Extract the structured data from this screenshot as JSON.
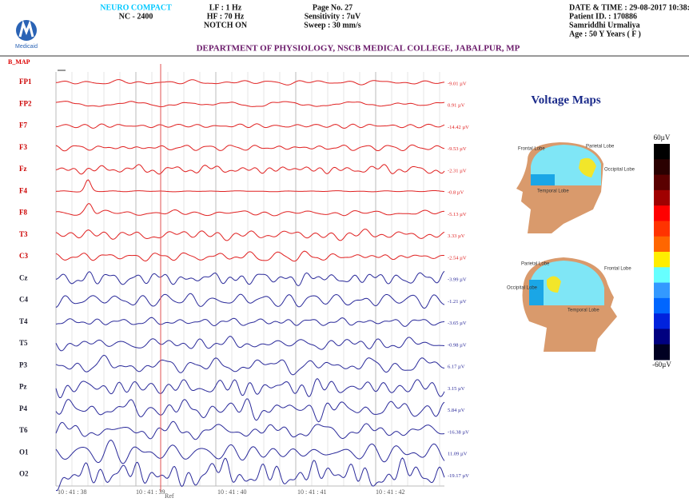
{
  "header": {
    "logo": "Medicaid",
    "device": "NEURO COMPACT",
    "model": "NC - 2400",
    "lf": "LF : 1 Hz",
    "hf": "HF : 70 Hz",
    "notch": "NOTCH ON",
    "page": "Page No. 27",
    "sensitivity": "Sensitivity : 7uV",
    "sweep": "Sweep : 30 mm/s",
    "datetime": "DATE & TIME : 29-08-2017 10:38:",
    "patient_id": "Patient ID. : 170886",
    "patient_name": "Samriddhi Urmaliya",
    "age": "Age : 50 Y Years  ( F )",
    "department": "DEPARTMENT OF PHYSIOLOGY, NSCB MEDICAL COLLEGE, JABALPUR, MP"
  },
  "montage": "B_MAP",
  "channels": [
    {
      "label": "FP1",
      "value_label": "-9.01 µV",
      "color": "#e02020"
    },
    {
      "label": "FP2",
      "value_label": "0.91 µV",
      "color": "#e02020"
    },
    {
      "label": "F7",
      "value_label": "-14.42 µV",
      "color": "#e02020"
    },
    {
      "label": "F3",
      "value_label": "-9.53 µV",
      "color": "#e02020"
    },
    {
      "label": "Fz",
      "value_label": "-2.31 µV",
      "color": "#e02020"
    },
    {
      "label": "F4",
      "value_label": "-0.8 µV",
      "color": "#e02020"
    },
    {
      "label": "F8",
      "value_label": "-5.13 µV",
      "color": "#e02020"
    },
    {
      "label": "T3",
      "value_label": "3.33 µV",
      "color": "#e02020"
    },
    {
      "label": "C3",
      "value_label": "-2.54 µV",
      "color": "#e02020"
    },
    {
      "label": "Cz",
      "value_label": "-3.99 µV",
      "color": "#2a2a9a"
    },
    {
      "label": "C4",
      "value_label": "-1.21 µV",
      "color": "#2a2a9a"
    },
    {
      "label": "T4",
      "value_label": "-3.65 µV",
      "color": "#2a2a9a"
    },
    {
      "label": "T5",
      "value_label": "-0.98 µV",
      "color": "#2a2a9a"
    },
    {
      "label": "P3",
      "value_label": "6.17 µV",
      "color": "#2a2a9a"
    },
    {
      "label": "Pz",
      "value_label": "3.15 µV",
      "color": "#2a2a9a"
    },
    {
      "label": "P4",
      "value_label": "5.84 µV",
      "color": "#2a2a9a"
    },
    {
      "label": "T6",
      "value_label": "-16.38 µV",
      "color": "#2a2a9a"
    },
    {
      "label": "O1",
      "value_label": "11.09 µV",
      "color": "#2a2a9a"
    },
    {
      "label": "O2",
      "value_label": "-19.17 µV",
      "color": "#2a2a9a"
    }
  ],
  "times": [
    "10 : 41 : 38",
    "10 : 41 : 39",
    "10 : 41 : 40",
    "10 : 41 : 41",
    "10 : 41 : 42"
  ],
  "ref": "Ref",
  "voltage_maps": {
    "title": "Voltage Maps",
    "map1": {
      "frontal": "Frontal Lobe",
      "parietal": "Parietal Lobe",
      "occipital": "Occipital Lobe",
      "temporal": "Temporal Lobe"
    },
    "map2": {
      "parietal": "Parietal Lobe",
      "frontal": "Frontal Lobe",
      "occipital": "Occipital Lobe",
      "temporal": "Temporal Lobe"
    }
  },
  "colorbar": {
    "top": "60µV",
    "bottom": "-60µV",
    "colors": [
      "#000000",
      "#2a0000",
      "#5a0000",
      "#a00000",
      "#ff0000",
      "#ff3300",
      "#ff6600",
      "#ffee00",
      "#66ffff",
      "#3399ff",
      "#0066ff",
      "#0022dd",
      "#000080",
      "#000022"
    ]
  }
}
